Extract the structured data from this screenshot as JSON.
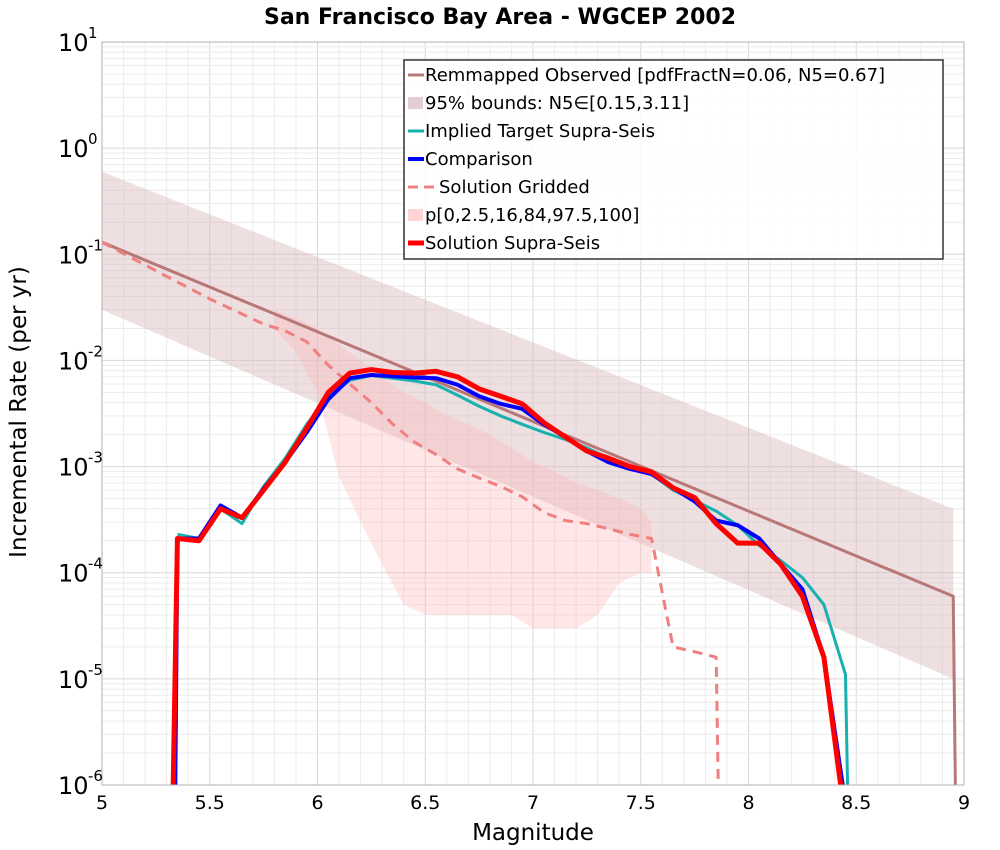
{
  "chart_data": {
    "type": "line",
    "title": "San Francisco Bay Area - WGCEP 2002",
    "xlabel": "Magnitude",
    "ylabel": "Incremental Rate (per yr)",
    "xlim": [
      5,
      9
    ],
    "ylim": [
      1e-06,
      10
    ],
    "yscale": "log",
    "grid": true,
    "legend_position": "top-right",
    "x_ticks": [
      "5",
      "5.5",
      "6",
      "6.5",
      "7",
      "7.5",
      "8",
      "8.5",
      "9"
    ],
    "y_ticks": [
      {
        "base": "10",
        "exp": "-6"
      },
      {
        "base": "10",
        "exp": "-5"
      },
      {
        "base": "10",
        "exp": "-4"
      },
      {
        "base": "10",
        "exp": "-3"
      },
      {
        "base": "10",
        "exp": "-2"
      },
      {
        "base": "10",
        "exp": "-1"
      },
      {
        "base": "10",
        "exp": "0"
      },
      {
        "base": "10",
        "exp": "1"
      }
    ],
    "series": [
      {
        "name": "Remmapped Observed [pdfFractN=0.06, N5=0.67]",
        "style": "line",
        "color": "#b87878",
        "width": 3,
        "x": [
          5.0,
          8.95,
          8.96
        ],
        "y": [
          0.13,
          6e-05,
          8e-07
        ]
      },
      {
        "name": "95% bounds: N5∈[0.15,3.11]",
        "style": "band",
        "color": "#d9b9bd",
        "opacity": 0.45,
        "x": [
          5.0,
          8.95
        ],
        "lower": [
          0.03,
          1e-05
        ],
        "upper": [
          0.6,
          0.0004
        ]
      },
      {
        "name": "Implied Target Supra-Seis",
        "style": "line",
        "color": "#19b0b0",
        "width": 3,
        "x": [
          5.35,
          5.45,
          5.55,
          5.65,
          5.75,
          5.85,
          5.95,
          6.05,
          6.15,
          6.25,
          6.35,
          6.45,
          6.55,
          6.65,
          6.75,
          6.85,
          6.95,
          7.05,
          7.15,
          7.25,
          7.35,
          7.45,
          7.55,
          7.65,
          7.75,
          7.85,
          7.95,
          8.05,
          8.15,
          8.25,
          8.35,
          8.45,
          8.46
        ],
        "y": [
          0.00023,
          0.00021,
          0.0004,
          0.00029,
          0.00065,
          0.0012,
          0.0025,
          0.0045,
          0.0065,
          0.0072,
          0.0068,
          0.0064,
          0.0059,
          0.0047,
          0.0037,
          0.003,
          0.0025,
          0.0021,
          0.0018,
          0.0015,
          0.0012,
          0.001,
          0.00085,
          0.0006,
          0.00048,
          0.00038,
          0.00028,
          0.00018,
          0.00013,
          9e-05,
          5e-05,
          1.1e-05,
          8e-07
        ]
      },
      {
        "name": "Comparison",
        "style": "line",
        "color": "#0000ff",
        "width": 4,
        "x": [
          5.34,
          5.35,
          5.45,
          5.55,
          5.65,
          5.75,
          5.85,
          5.95,
          6.05,
          6.15,
          6.25,
          6.35,
          6.45,
          6.55,
          6.65,
          6.75,
          6.85,
          6.95,
          7.05,
          7.15,
          7.25,
          7.35,
          7.45,
          7.55,
          7.65,
          7.75,
          7.85,
          7.95,
          8.05,
          8.15,
          8.25,
          8.35,
          8.44
        ],
        "y": [
          8e-07,
          0.00021,
          0.00021,
          0.00043,
          0.00033,
          0.00062,
          0.0011,
          0.0021,
          0.0043,
          0.0068,
          0.0073,
          0.0071,
          0.0069,
          0.0068,
          0.0059,
          0.0046,
          0.0039,
          0.0035,
          0.0025,
          0.0019,
          0.0014,
          0.0011,
          0.00095,
          0.00085,
          0.00063,
          0.00047,
          0.00031,
          0.00028,
          0.00021,
          0.00012,
          7e-05,
          1.6e-05,
          8e-07
        ]
      },
      {
        "name": "Solution Gridded",
        "style": "dashed",
        "color": "#f08080",
        "width": 3,
        "x": [
          5.0,
          5.25,
          5.5,
          5.75,
          5.85,
          5.95,
          6.05,
          6.15,
          6.25,
          6.35,
          6.45,
          6.55,
          6.65,
          6.75,
          6.85,
          6.95,
          7.05,
          7.15,
          7.25,
          7.35,
          7.45,
          7.55,
          7.65,
          7.75,
          7.85,
          7.86
        ],
        "y": [
          0.13,
          0.07,
          0.038,
          0.022,
          0.019,
          0.015,
          0.009,
          0.006,
          0.004,
          0.0025,
          0.0017,
          0.0013,
          0.00095,
          0.00078,
          0.00065,
          0.00052,
          0.00037,
          0.00031,
          0.00029,
          0.00026,
          0.00023,
          0.00021,
          2e-05,
          1.8e-05,
          1.6e-05,
          8e-07
        ]
      },
      {
        "name": "p[0,2.5,16,84,97.5,100]",
        "style": "band",
        "color": "#ffb0b0",
        "opacity": 0.3,
        "x": [
          5.8,
          5.9,
          6.0,
          6.1,
          6.2,
          6.3,
          6.4,
          6.5,
          6.6,
          6.7,
          6.8,
          6.9,
          7.0,
          7.1,
          7.2,
          7.3,
          7.4,
          7.5,
          7.55
        ],
        "lower": [
          0.02,
          0.012,
          0.005,
          0.0008,
          0.0003,
          0.00012,
          5e-05,
          4e-05,
          4e-05,
          4e-05,
          4e-05,
          4e-05,
          3e-05,
          3e-05,
          3e-05,
          4e-05,
          8e-05,
          0.0001,
          0.0001
        ],
        "upper": [
          0.03,
          0.025,
          0.02,
          0.014,
          0.01,
          0.007,
          0.005,
          0.004,
          0.003,
          0.0025,
          0.002,
          0.0015,
          0.0011,
          0.0009,
          0.0007,
          0.0006,
          0.0005,
          0.0004,
          0.0003
        ]
      },
      {
        "name": "Solution Supra-Seis",
        "style": "line",
        "color": "#ff0000",
        "width": 5,
        "x": [
          5.33,
          5.35,
          5.45,
          5.55,
          5.65,
          5.75,
          5.85,
          5.95,
          6.05,
          6.15,
          6.25,
          6.35,
          6.45,
          6.55,
          6.65,
          6.75,
          6.85,
          6.95,
          7.05,
          7.15,
          7.25,
          7.35,
          7.45,
          7.55,
          7.65,
          7.75,
          7.85,
          7.95,
          8.05,
          8.15,
          8.25,
          8.35,
          8.43
        ],
        "y": [
          8e-07,
          0.00021,
          0.0002,
          0.0004,
          0.00033,
          0.0006,
          0.0011,
          0.0023,
          0.005,
          0.0076,
          0.0082,
          0.0077,
          0.0076,
          0.0079,
          0.007,
          0.0054,
          0.0046,
          0.0039,
          0.0026,
          0.0019,
          0.0014,
          0.0012,
          0.001,
          0.00089,
          0.00063,
          0.00051,
          0.00029,
          0.00019,
          0.00019,
          0.00012,
          6e-05,
          1.6e-05,
          8e-07
        ]
      }
    ]
  }
}
